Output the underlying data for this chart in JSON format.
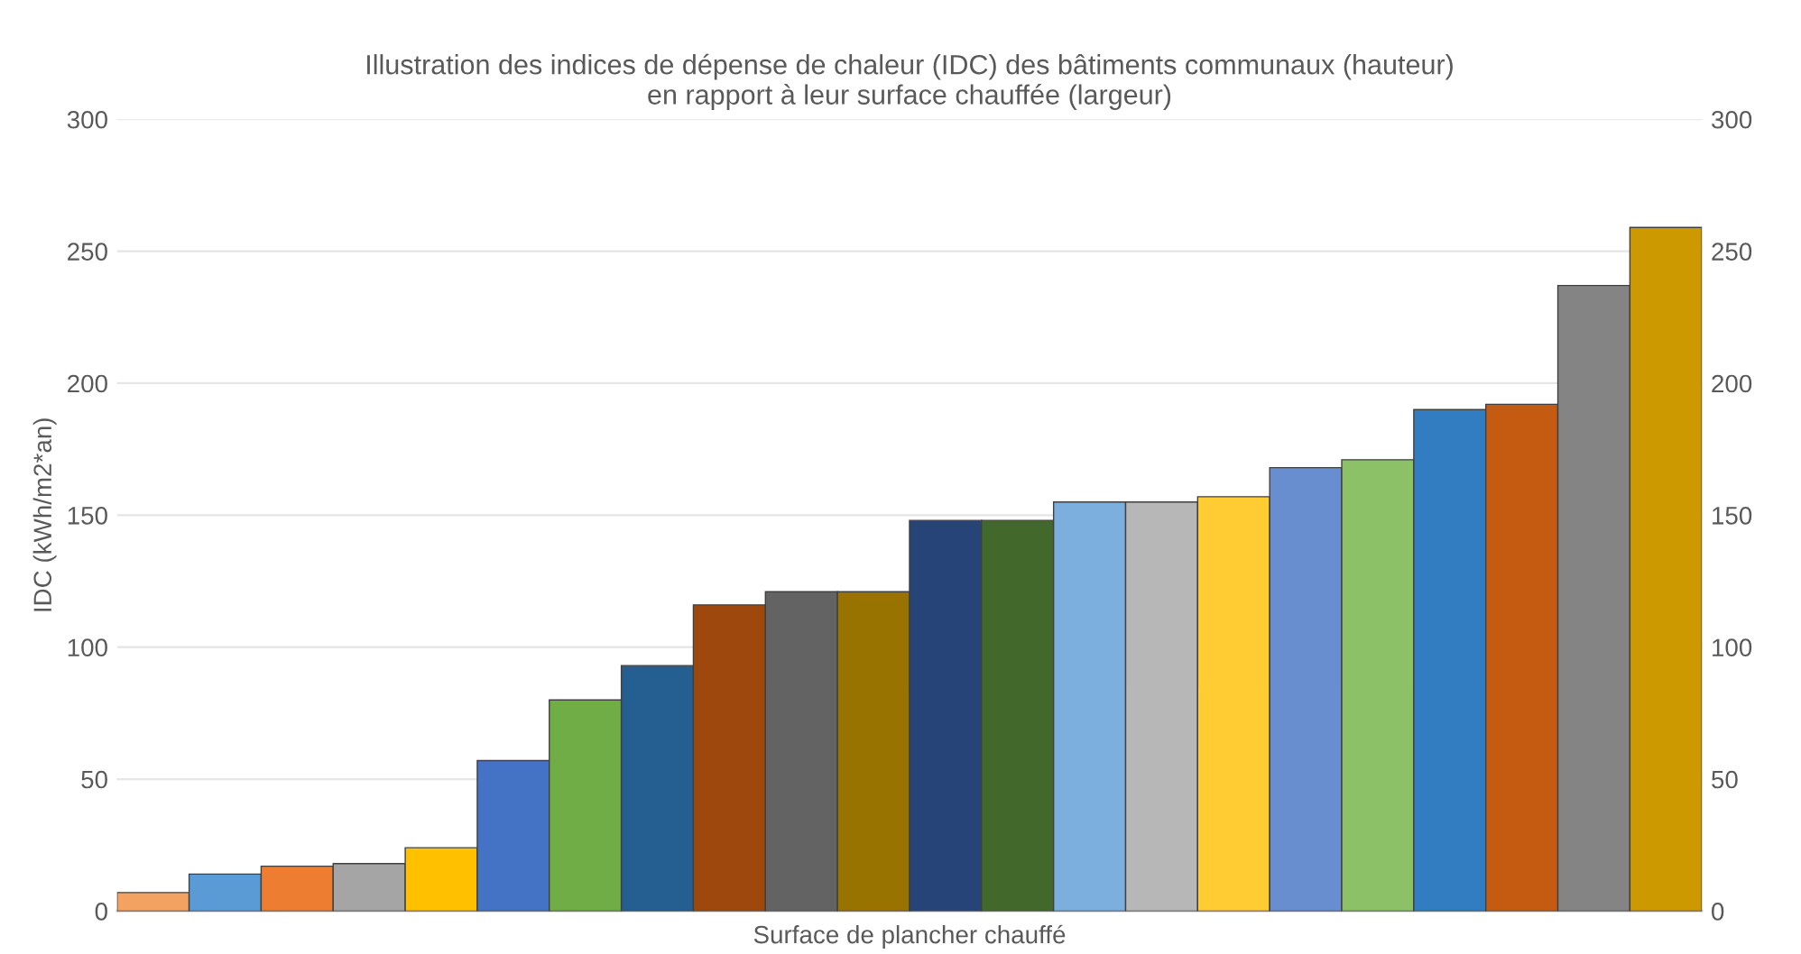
{
  "chart_data": {
    "type": "bar",
    "title": "Illustration des indices de dépense de chaleur (IDC) des bâtiments communaux (hauteur)\nen rapport à leur surface chauffée (largeur)",
    "xlabel": "Surface de plancher chauffé",
    "ylabel": "IDC (kWh/m2*an)",
    "categories": [
      null,
      null,
      null,
      null,
      null,
      null,
      null,
      null,
      null,
      null,
      null,
      null,
      null,
      null,
      null,
      null,
      null,
      null,
      null,
      null,
      null,
      null
    ],
    "values": [
      7,
      14,
      17,
      18,
      24,
      57,
      80,
      93,
      116,
      121,
      121,
      148,
      148,
      155,
      155,
      157,
      168,
      171,
      190,
      192,
      237,
      259
    ],
    "colors": [
      "#f4a261",
      "#5b9bd5",
      "#ed7d31",
      "#a5a5a5",
      "#ffc000",
      "#4472c4",
      "#70ad47",
      "#255e91",
      "#9e480e",
      "#636363",
      "#997300",
      "#264478",
      "#43682b",
      "#7cafdd",
      "#b7b7b7",
      "#ffcd33",
      "#698ed0",
      "#8cc168",
      "#327dc2",
      "#c55a11",
      "#848484",
      "#cc9a00"
    ],
    "ylim": [
      0,
      300
    ],
    "yticks": [
      0,
      50,
      100,
      150,
      200,
      250,
      300
    ],
    "y2lim": [
      0,
      300
    ],
    "y2ticks": [
      0,
      50,
      100,
      150,
      200,
      250,
      300
    ],
    "grid": "y"
  }
}
